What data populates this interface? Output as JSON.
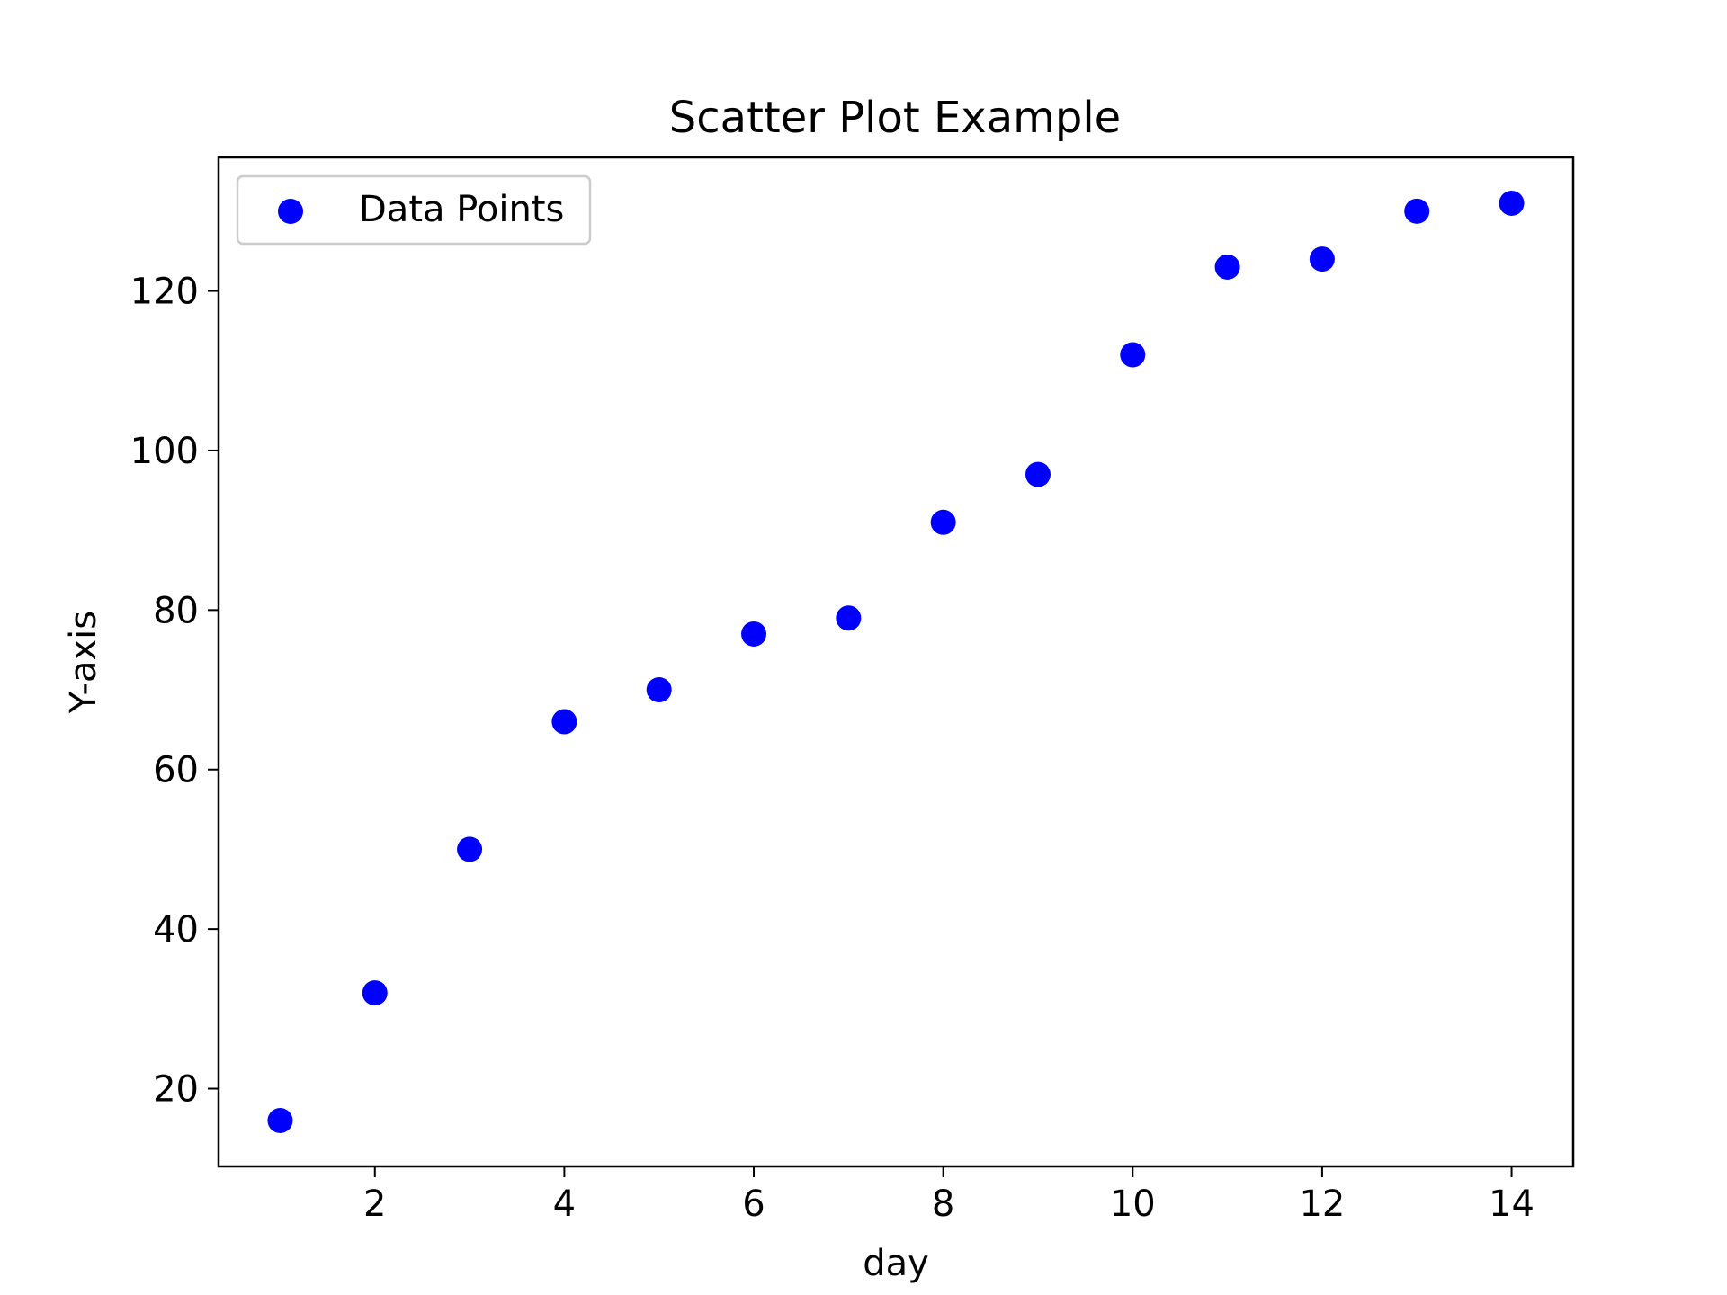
{
  "chart_data": {
    "type": "scatter",
    "title": "Scatter Plot Example",
    "xlabel": "day",
    "ylabel": "Y-axis",
    "xlim": [
      0.35,
      14.65
    ],
    "ylim": [
      10.25,
      136.75
    ],
    "xticks": [
      2,
      4,
      6,
      8,
      10,
      12,
      14
    ],
    "yticks": [
      20,
      40,
      60,
      80,
      100,
      120
    ],
    "grid": false,
    "legend_position": "upper-left",
    "series": [
      {
        "name": "Data Points",
        "color": "#0000ff",
        "x": [
          1,
          2,
          3,
          4,
          5,
          6,
          7,
          8,
          9,
          10,
          11,
          12,
          13,
          14
        ],
        "y": [
          16,
          32,
          50,
          66,
          70,
          77,
          79,
          91,
          97,
          112,
          123,
          124,
          130,
          131
        ]
      }
    ]
  }
}
